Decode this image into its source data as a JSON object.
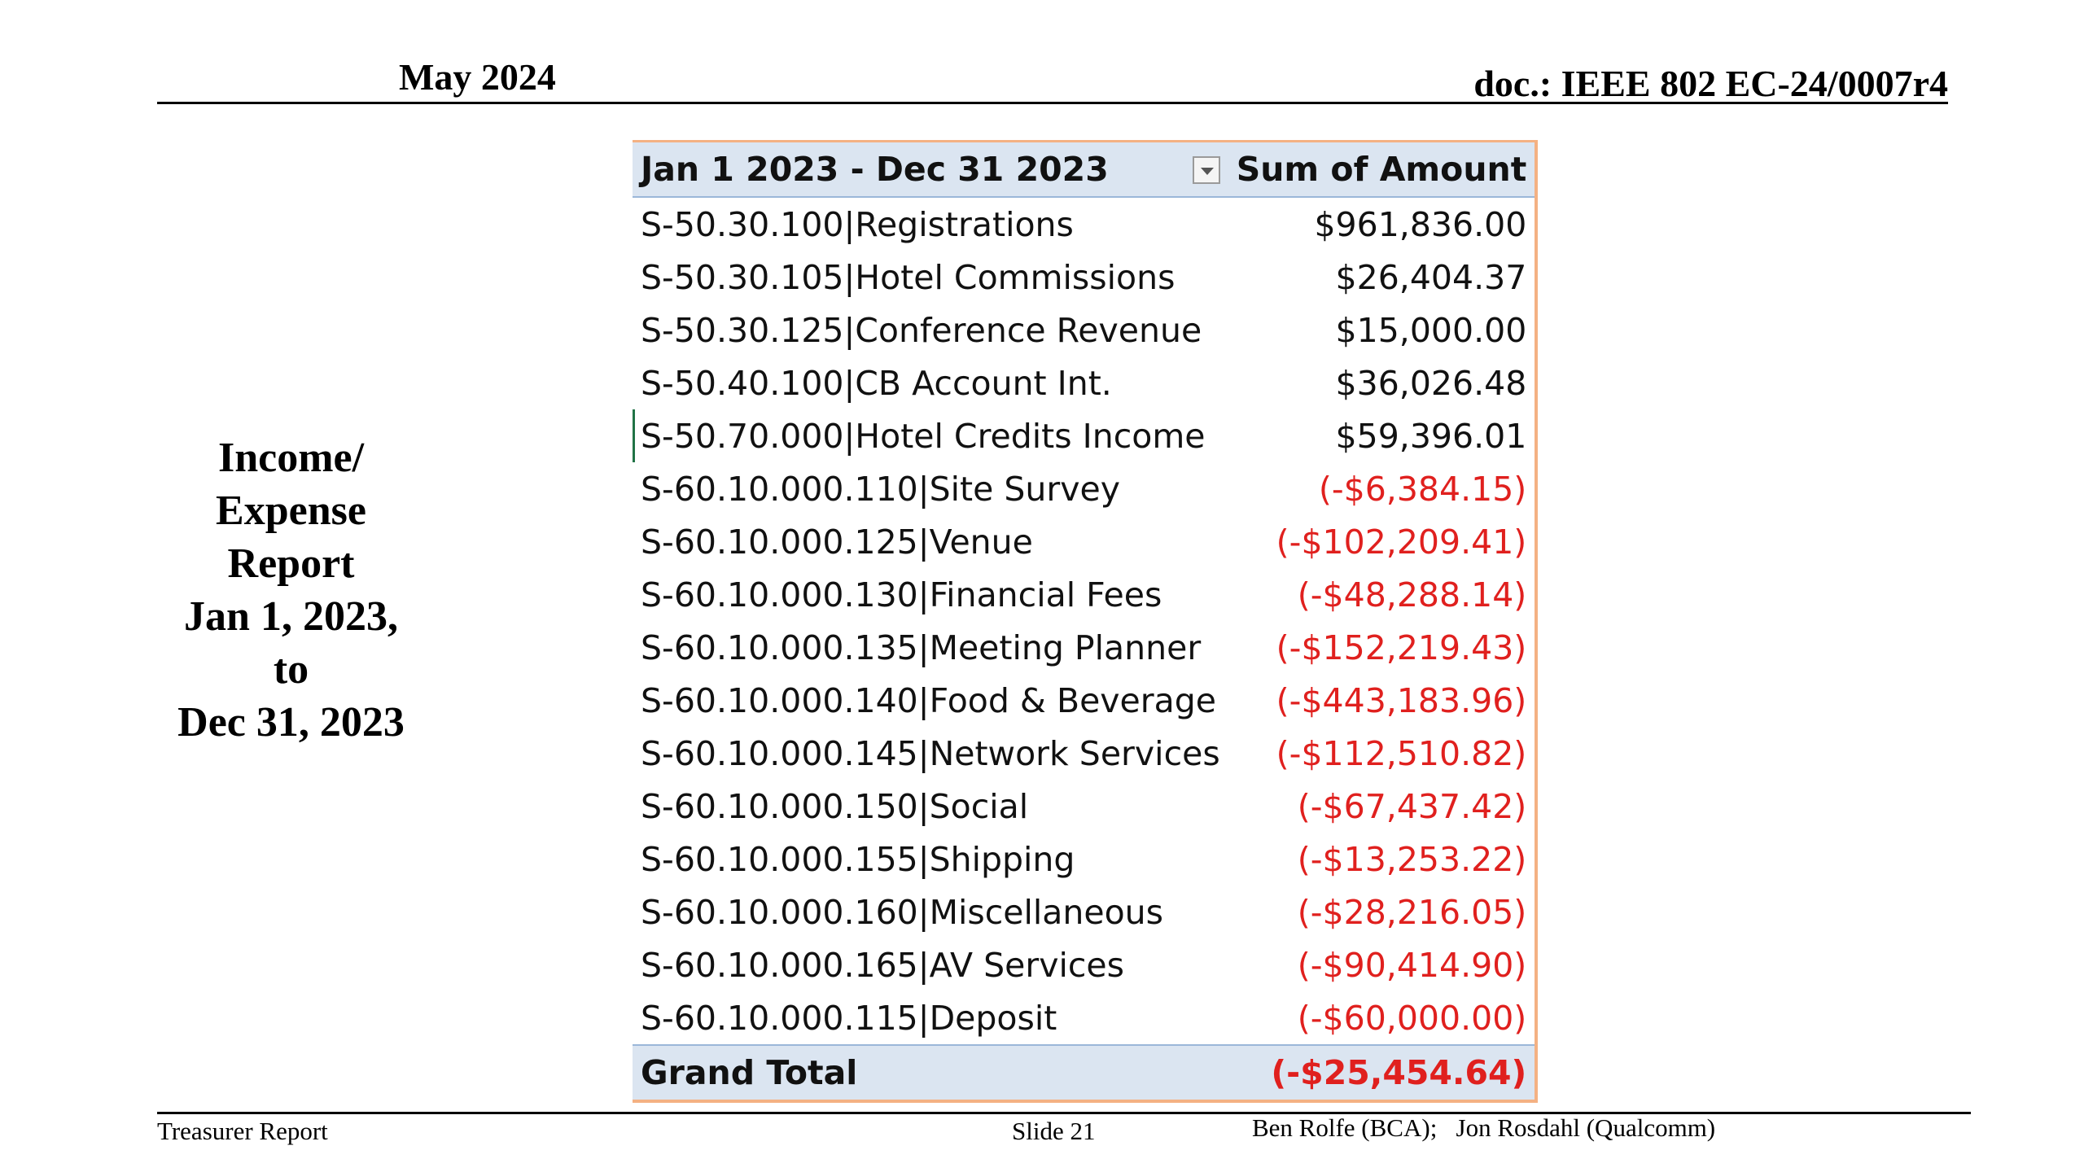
{
  "header": {
    "date": "May 2024",
    "doc": "doc.: IEEE 802 EC-24/0007r4"
  },
  "side_title": {
    "lines": [
      "Income/",
      "Expense",
      "Report",
      "Jan 1, 2023,",
      "to",
      "Dec 31, 2023"
    ]
  },
  "table": {
    "header": {
      "label": "Jan 1 2023 - Dec 31 2023",
      "amount": "Sum of Amount",
      "filter_icon": "dropdown-arrow-icon"
    },
    "rows": [
      {
        "label": "S-50.30.100|Registrations",
        "amount": "$961,836.00",
        "negative": false
      },
      {
        "label": "S-50.30.105|Hotel Commissions",
        "amount": "$26,404.37",
        "negative": false
      },
      {
        "label": "S-50.30.125|Conference Revenue",
        "amount": "$15,000.00",
        "negative": false
      },
      {
        "label": "S-50.40.100|CB Account Int.",
        "amount": "$36,026.48",
        "negative": false
      },
      {
        "label": "S-50.70.000|Hotel Credits Income",
        "amount": "$59,396.01",
        "negative": false
      },
      {
        "label": "S-60.10.000.110|Site Survey",
        "amount": "(-$6,384.15)",
        "negative": true
      },
      {
        "label": "S-60.10.000.125|Venue",
        "amount": "(-$102,209.41)",
        "negative": true
      },
      {
        "label": "S-60.10.000.130|Financial Fees",
        "amount": "(-$48,288.14)",
        "negative": true
      },
      {
        "label": "S-60.10.000.135|Meeting Planner",
        "amount": "(-$152,219.43)",
        "negative": true
      },
      {
        "label": "S-60.10.000.140|Food & Beverage",
        "amount": "(-$443,183.96)",
        "negative": true
      },
      {
        "label": "S-60.10.000.145|Network Services",
        "amount": "(-$112,510.82)",
        "negative": true
      },
      {
        "label": "S-60.10.000.150|Social",
        "amount": "(-$67,437.42)",
        "negative": true
      },
      {
        "label": "S-60.10.000.155|Shipping",
        "amount": "(-$13,253.22)",
        "negative": true
      },
      {
        "label": "S-60.10.000.160|Miscellaneous",
        "amount": "(-$28,216.05)",
        "negative": true
      },
      {
        "label": "S-60.10.000.165|AV Services",
        "amount": "(-$90,414.90)",
        "negative": true
      },
      {
        "label": "S-60.10.000.115|Deposit",
        "amount": "(-$60,000.00)",
        "negative": true
      }
    ],
    "total": {
      "label": "Grand Total",
      "amount": "(-$25,454.64)"
    },
    "colors": {
      "header_bg": "#dbe5f1",
      "negative": "#e0201e",
      "border": "#f4b183"
    }
  },
  "footer": {
    "left": "Treasurer Report",
    "center": "Slide 21",
    "right": "Ben Rolfe (BCA);   Jon Rosdahl (Qualcomm)"
  }
}
